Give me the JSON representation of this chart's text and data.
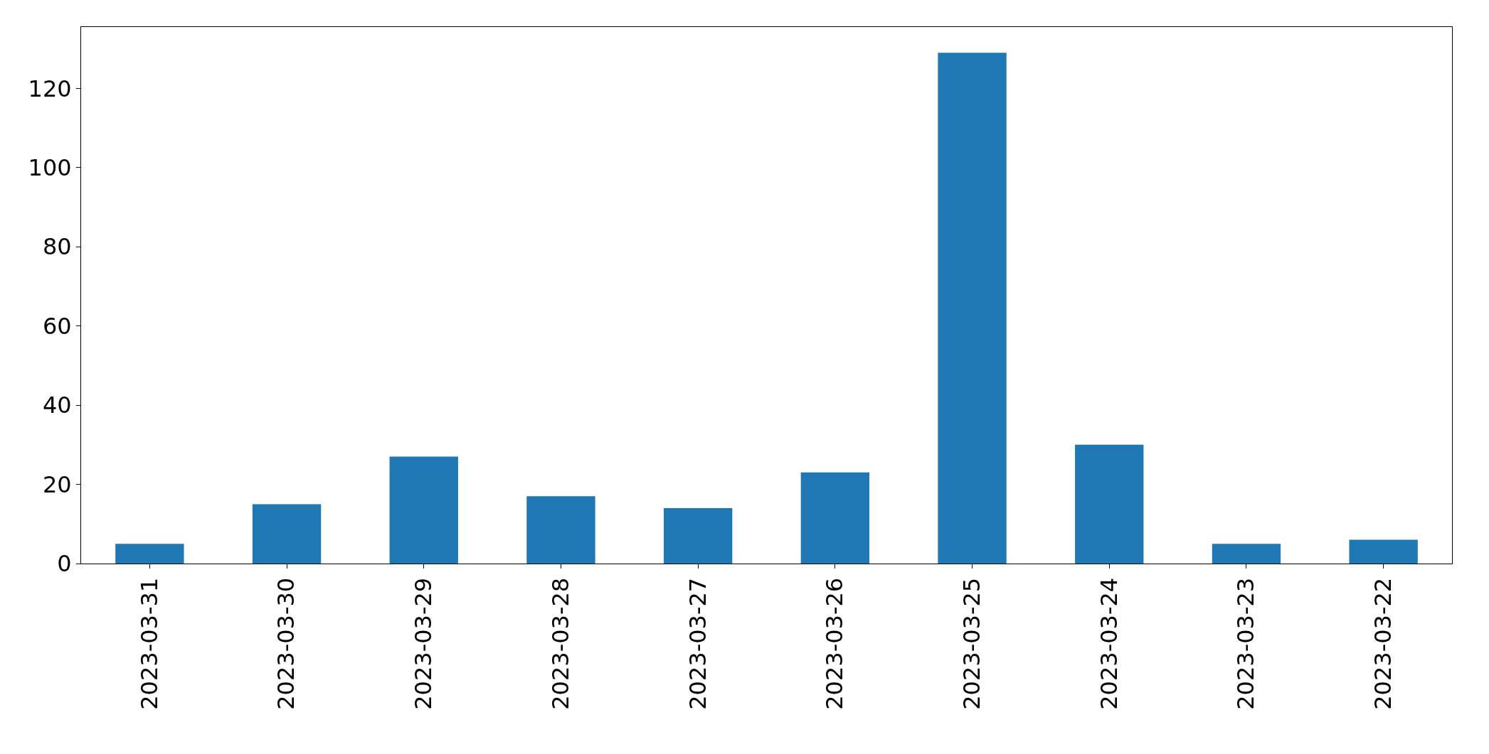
{
  "chart_data": {
    "type": "bar",
    "categories": [
      "2023-03-31",
      "2023-03-30",
      "2023-03-29",
      "2023-03-28",
      "2023-03-27",
      "2023-03-26",
      "2023-03-25",
      "2023-03-24",
      "2023-03-23",
      "2023-03-22"
    ],
    "values": [
      5,
      15,
      27,
      17,
      14,
      23,
      129,
      30,
      5,
      6
    ],
    "color": "#1f77b4",
    "ylim": [
      0,
      135.5
    ],
    "yticks": [
      0,
      20,
      40,
      60,
      80,
      100,
      120
    ],
    "grid": false
  }
}
